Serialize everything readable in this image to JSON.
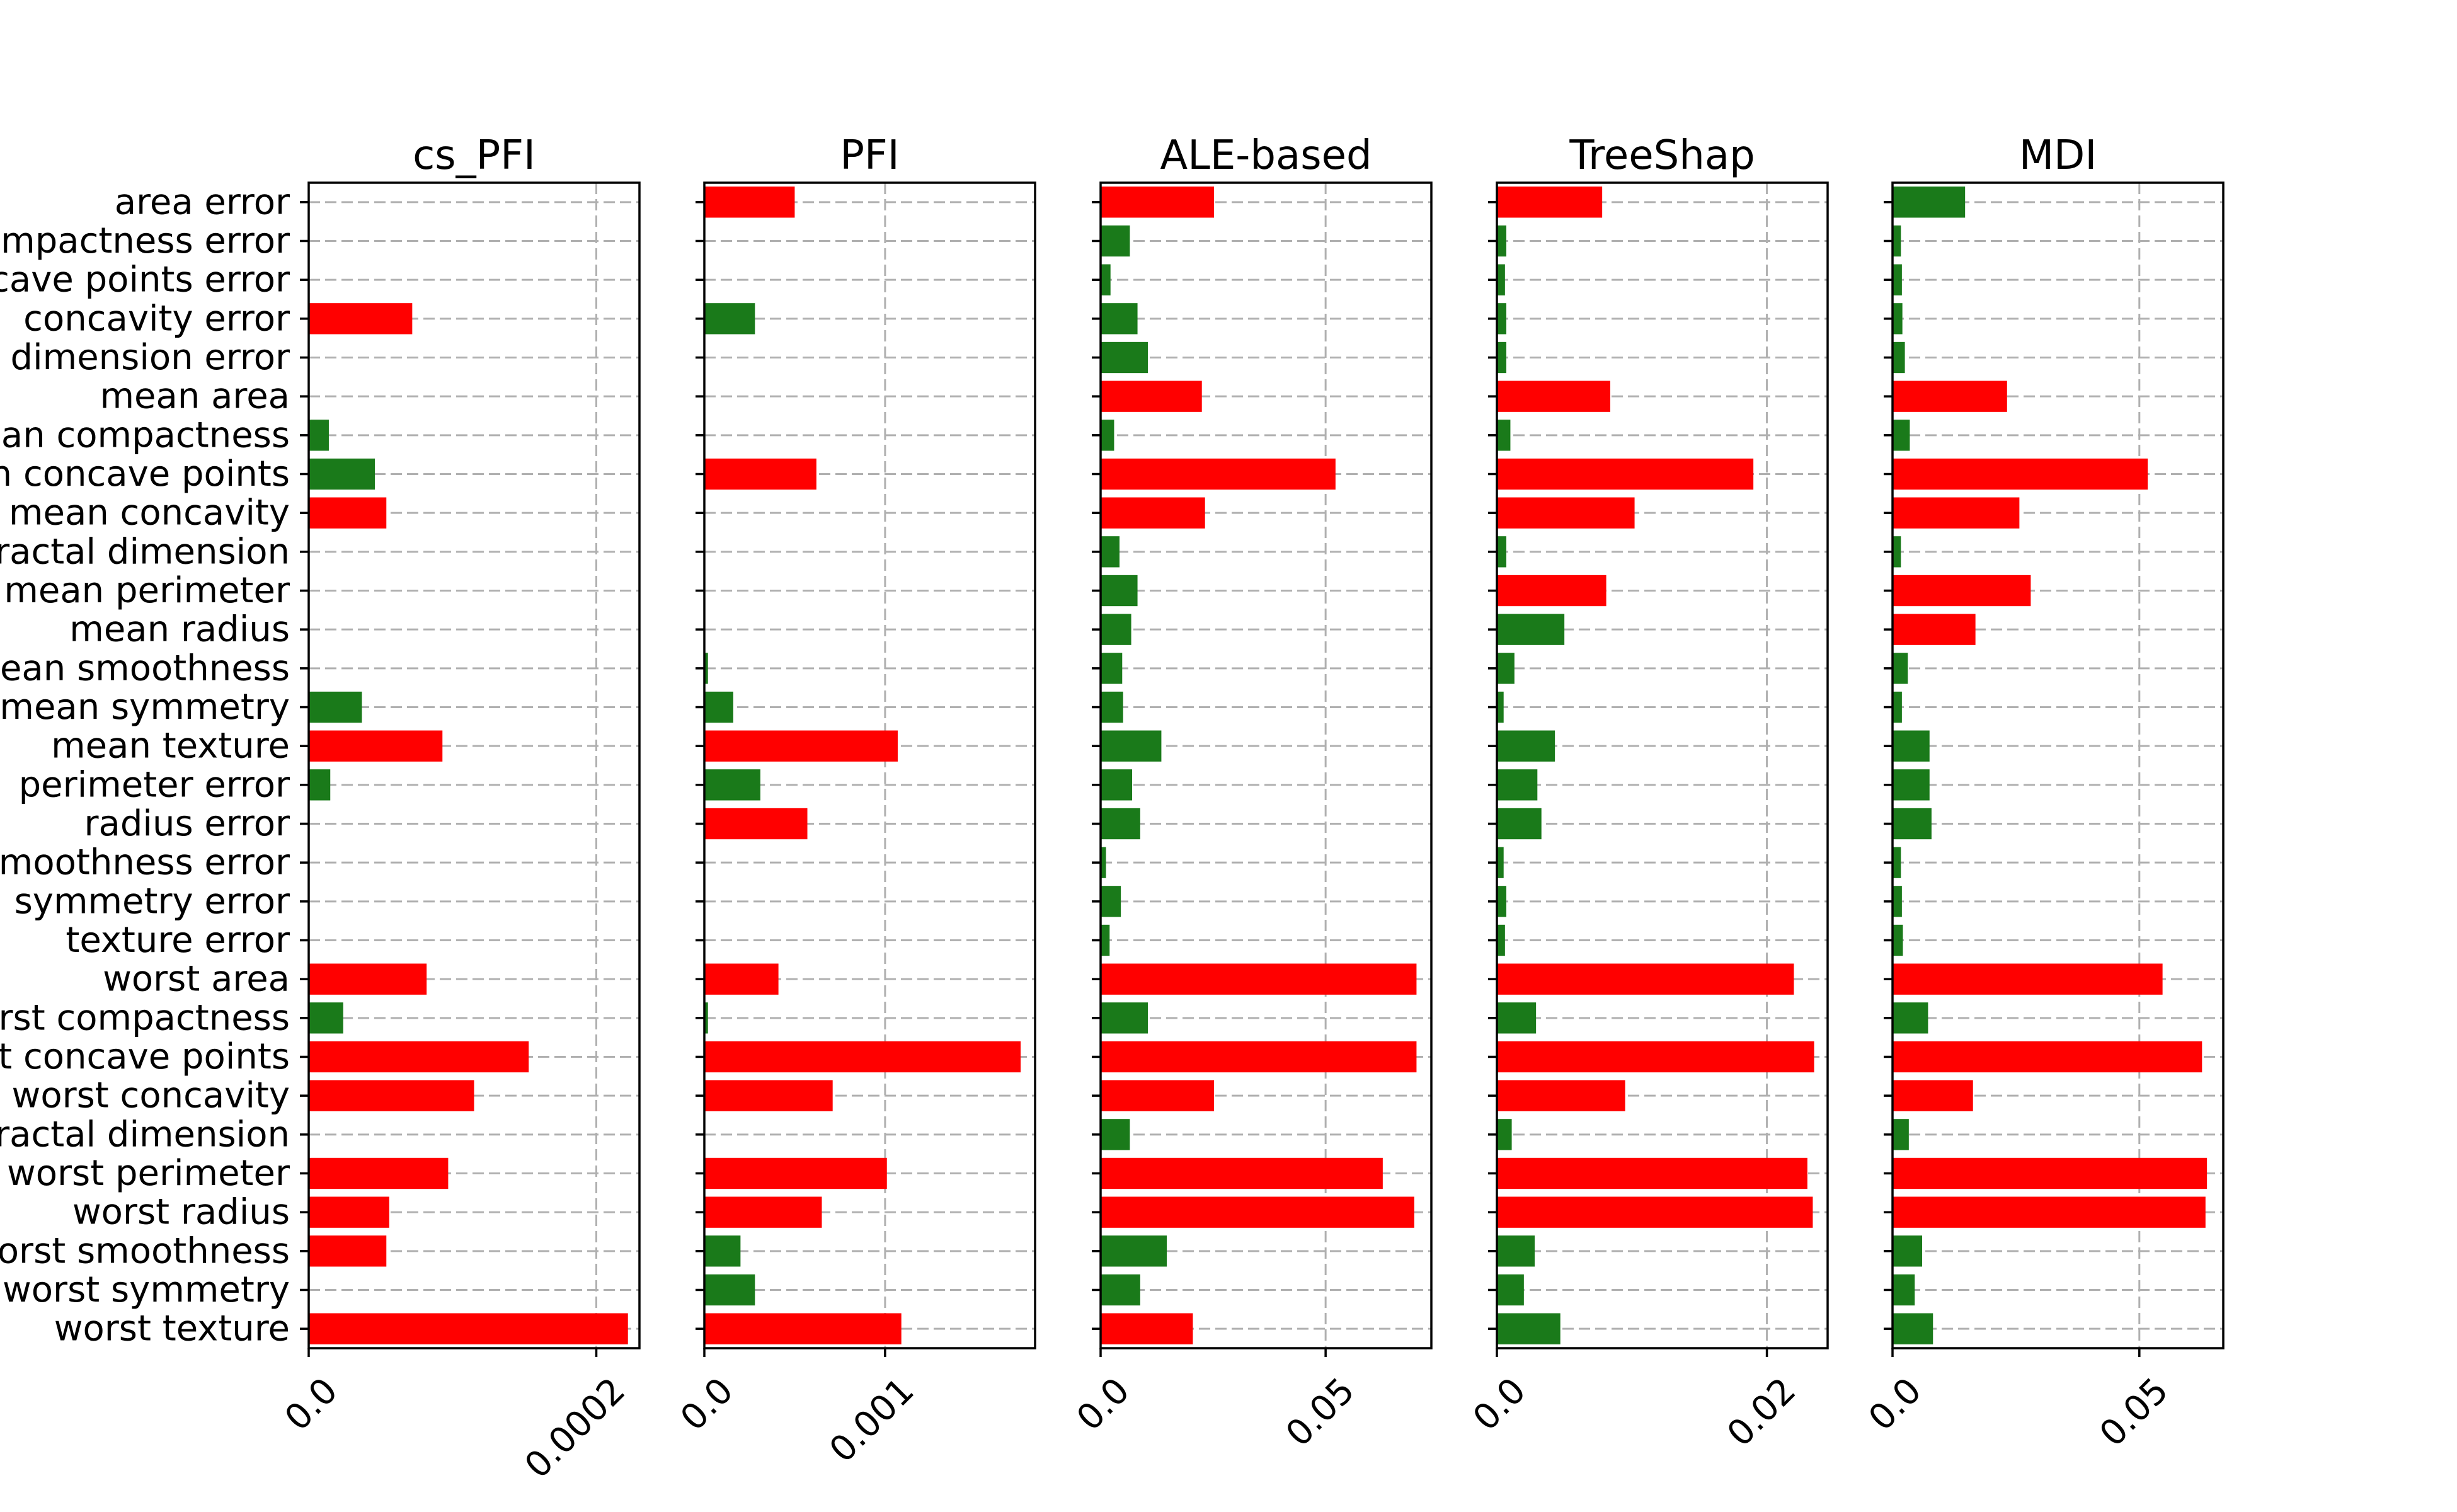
{
  "chart_data": {
    "type": "bar",
    "orientation": "horizontal",
    "grid": true,
    "colors": {
      "high": "#ff0000",
      "low": "#1a7a1a"
    },
    "categories": [
      "area error",
      "compactness error",
      "concave points error",
      "concavity error",
      "fractal dimension error",
      "mean area",
      "mean compactness",
      "mean concave points",
      "mean concavity",
      "mean fractal dimension",
      "mean perimeter",
      "mean radius",
      "mean smoothness",
      "mean symmetry",
      "mean texture",
      "perimeter error",
      "radius error",
      "smoothness error",
      "symmetry error",
      "texture error",
      "worst area",
      "worst compactness",
      "worst concave points",
      "worst concavity",
      "worst fractal dimension",
      "worst perimeter",
      "worst radius",
      "worst smoothness",
      "worst symmetry",
      "worst texture"
    ],
    "panels": [
      {
        "title": "cs_PFI",
        "xlim": [
          0,
          0.00023
        ],
        "xticks": [
          {
            "value": 0,
            "label": "0.0"
          },
          {
            "value": 0.0002,
            "label": "0.0002"
          }
        ],
        "values": [
          0,
          0,
          0,
          7.2e-05,
          0,
          0,
          1.4e-05,
          4.6e-05,
          5.4e-05,
          0,
          0,
          0,
          0,
          3.7e-05,
          9.3e-05,
          1.5e-05,
          0,
          0,
          0,
          0,
          8.2e-05,
          2.4e-05,
          0.000153,
          0.000115,
          0,
          9.7e-05,
          5.6e-05,
          5.4e-05,
          0,
          0.000222
        ],
        "colors": [
          "",
          "",
          "",
          "high",
          "",
          "",
          "low",
          "low",
          "high",
          "",
          "",
          "",
          "",
          "low",
          "high",
          "low",
          "",
          "",
          "",
          "",
          "high",
          "low",
          "high",
          "high",
          "",
          "high",
          "high",
          "high",
          "",
          "high"
        ]
      },
      {
        "title": "PFI",
        "xlim": [
          0,
          0.00183
        ],
        "xticks": [
          {
            "value": 0,
            "label": "0.0"
          },
          {
            "value": 0.001,
            "label": "0.001"
          }
        ],
        "values": [
          0.0005,
          0,
          0,
          0.00028,
          0,
          0,
          0,
          0.00062,
          0,
          0,
          0,
          0,
          2e-05,
          0.00016,
          0.00107,
          0.00031,
          0.00057,
          0,
          0,
          0,
          0.00041,
          2e-05,
          0.00175,
          0.00071,
          0,
          0.00101,
          0.00065,
          0.0002,
          0.00028,
          0.00109
        ],
        "colors": [
          "high",
          "",
          "",
          "low",
          "",
          "",
          "",
          "high",
          "",
          "",
          "",
          "",
          "low",
          "low",
          "high",
          "low",
          "high",
          "",
          "",
          "",
          "high",
          "low",
          "high",
          "high",
          "",
          "high",
          "high",
          "low",
          "low",
          "high"
        ]
      },
      {
        "title": "ALE-based",
        "xlim": [
          0,
          0.0735
        ],
        "xticks": [
          {
            "value": 0,
            "label": "0.0"
          },
          {
            "value": 0.05,
            "label": "0.05"
          }
        ],
        "values": [
          0.0252,
          0.0065,
          0.0022,
          0.0082,
          0.0105,
          0.0225,
          0.003,
          0.0522,
          0.0232,
          0.0042,
          0.0082,
          0.0068,
          0.0048,
          0.005,
          0.0135,
          0.007,
          0.0088,
          0.0012,
          0.0045,
          0.002,
          0.0702,
          0.0105,
          0.0702,
          0.0252,
          0.0065,
          0.0627,
          0.0697,
          0.0147,
          0.0088,
          0.0205
        ],
        "colors": [
          "high",
          "low",
          "low",
          "low",
          "low",
          "high",
          "low",
          "high",
          "high",
          "low",
          "low",
          "low",
          "low",
          "low",
          "low",
          "low",
          "low",
          "low",
          "low",
          "low",
          "high",
          "low",
          "high",
          "high",
          "low",
          "high",
          "high",
          "low",
          "low",
          "high"
        ]
      },
      {
        "title": "TreeShap",
        "xlim": [
          0,
          0.0245
        ],
        "xticks": [
          {
            "value": 0,
            "label": "0.0"
          },
          {
            "value": 0.02,
            "label": "0.02"
          }
        ],
        "values": [
          0.0078,
          0.0007,
          0.0006,
          0.0007,
          0.0007,
          0.0084,
          0.001,
          0.019,
          0.0102,
          0.0007,
          0.0081,
          0.005,
          0.0013,
          0.0005,
          0.0043,
          0.003,
          0.0033,
          0.0005,
          0.0007,
          0.0006,
          0.022,
          0.0029,
          0.0235,
          0.0095,
          0.0011,
          0.023,
          0.0234,
          0.0028,
          0.002,
          0.0047
        ],
        "colors": [
          "high",
          "low",
          "low",
          "low",
          "low",
          "high",
          "low",
          "high",
          "high",
          "low",
          "high",
          "low",
          "low",
          "low",
          "low",
          "low",
          "low",
          "low",
          "low",
          "low",
          "high",
          "low",
          "high",
          "high",
          "low",
          "high",
          "high",
          "low",
          "low",
          "low"
        ]
      },
      {
        "title": "MDI",
        "xlim": [
          0,
          0.067
        ],
        "xticks": [
          {
            "value": 0,
            "label": "0.0"
          },
          {
            "value": 0.05,
            "label": "0.05"
          }
        ],
        "values": [
          0.0147,
          0.0017,
          0.0019,
          0.002,
          0.0025,
          0.0232,
          0.0035,
          0.0517,
          0.0257,
          0.0017,
          0.028,
          0.0168,
          0.0031,
          0.0019,
          0.0075,
          0.0075,
          0.0079,
          0.0017,
          0.0019,
          0.0021,
          0.0547,
          0.0072,
          0.0627,
          0.0163,
          0.0033,
          0.0637,
          0.0634,
          0.006,
          0.0045,
          0.0082
        ],
        "colors": [
          "low",
          "low",
          "low",
          "low",
          "low",
          "high",
          "low",
          "high",
          "high",
          "low",
          "high",
          "high",
          "low",
          "low",
          "low",
          "low",
          "low",
          "low",
          "low",
          "low",
          "high",
          "low",
          "high",
          "high",
          "low",
          "high",
          "high",
          "low",
          "low",
          "low"
        ]
      }
    ]
  }
}
